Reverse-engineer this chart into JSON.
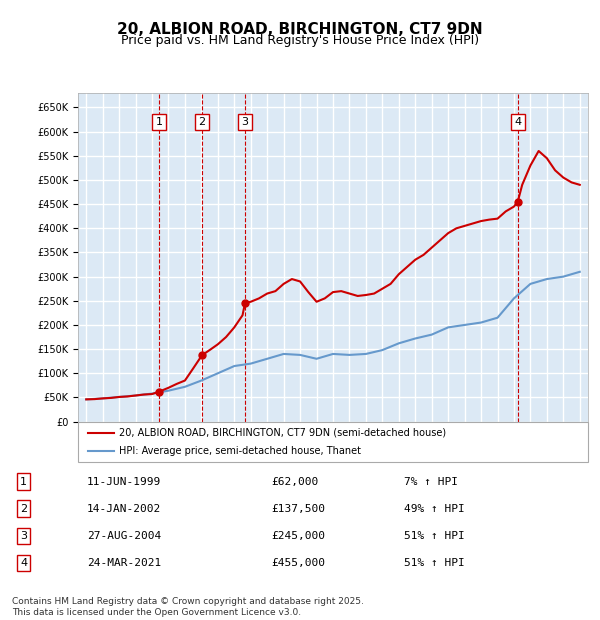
{
  "title": "20, ALBION ROAD, BIRCHINGTON, CT7 9DN",
  "subtitle": "Price paid vs. HM Land Registry's House Price Index (HPI)",
  "footer": "Contains HM Land Registry data © Crown copyright and database right 2025.\nThis data is licensed under the Open Government Licence v3.0.",
  "legend_label_red": "20, ALBION ROAD, BIRCHINGTON, CT7 9DN (semi-detached house)",
  "legend_label_blue": "HPI: Average price, semi-detached house, Thanet",
  "background_color": "#dce9f5",
  "plot_bg_color": "#dce9f5",
  "grid_color": "#ffffff",
  "red_color": "#cc0000",
  "blue_color": "#6699cc",
  "transactions": [
    {
      "label": "1",
      "date_num": 1999.44,
      "price": 62000,
      "x_label": "11-JUN-1999",
      "price_label": "£62,000",
      "pct": "7% ↑ HPI"
    },
    {
      "label": "2",
      "date_num": 2002.04,
      "price": 137500,
      "x_label": "14-JAN-2002",
      "price_label": "£137,500",
      "pct": "49% ↑ HPI"
    },
    {
      "label": "3",
      "date_num": 2004.65,
      "price": 245000,
      "x_label": "27-AUG-2004",
      "price_label": "£245,000",
      "pct": "51% ↑ HPI"
    },
    {
      "label": "4",
      "date_num": 2021.23,
      "price": 455000,
      "x_label": "24-MAR-2021",
      "price_label": "£455,000",
      "pct": "51% ↑ HPI"
    }
  ],
  "hpi_data": {
    "years": [
      1995,
      1996,
      1997,
      1998,
      1999,
      2000,
      2001,
      2002,
      2003,
      2004,
      2005,
      2006,
      2007,
      2008,
      2009,
      2010,
      2011,
      2012,
      2013,
      2014,
      2015,
      2016,
      2017,
      2018,
      2019,
      2020,
      2021,
      2022,
      2023,
      2024,
      2025
    ],
    "values": [
      46000,
      48000,
      51000,
      54000,
      58000,
      64000,
      72000,
      85000,
      100000,
      115000,
      120000,
      130000,
      140000,
      138000,
      130000,
      140000,
      138000,
      140000,
      148000,
      162000,
      172000,
      180000,
      195000,
      200000,
      205000,
      215000,
      255000,
      285000,
      295000,
      300000,
      310000
    ]
  },
  "price_data": {
    "x": [
      1995.0,
      1995.5,
      1996.0,
      1996.5,
      1997.0,
      1997.5,
      1998.0,
      1998.5,
      1999.0,
      1999.44,
      1999.5,
      2000.0,
      2000.5,
      2001.0,
      2001.5,
      2002.04,
      2002.5,
      2003.0,
      2003.5,
      2004.0,
      2004.5,
      2004.65,
      2005.0,
      2005.5,
      2006.0,
      2006.5,
      2007.0,
      2007.5,
      2008.0,
      2008.5,
      2009.0,
      2009.5,
      2010.0,
      2010.5,
      2011.0,
      2011.5,
      2012.0,
      2012.5,
      2013.0,
      2013.5,
      2014.0,
      2014.5,
      2015.0,
      2015.5,
      2016.0,
      2016.5,
      2017.0,
      2017.5,
      2018.0,
      2018.5,
      2019.0,
      2019.5,
      2020.0,
      2020.5,
      2021.0,
      2021.23,
      2021.5,
      2022.0,
      2022.5,
      2023.0,
      2023.5,
      2024.0,
      2024.5,
      2025.0
    ],
    "y": [
      46000,
      46500,
      48000,
      49000,
      51000,
      52000,
      54000,
      56000,
      57000,
      62000,
      63000,
      70000,
      78000,
      85000,
      110000,
      137500,
      148000,
      160000,
      175000,
      195000,
      220000,
      245000,
      248000,
      255000,
      265000,
      270000,
      285000,
      295000,
      290000,
      268000,
      248000,
      255000,
      268000,
      270000,
      265000,
      260000,
      262000,
      265000,
      275000,
      285000,
      305000,
      320000,
      335000,
      345000,
      360000,
      375000,
      390000,
      400000,
      405000,
      410000,
      415000,
      418000,
      420000,
      435000,
      445000,
      455000,
      490000,
      530000,
      560000,
      545000,
      520000,
      505000,
      495000,
      490000
    ]
  },
  "ylim": [
    0,
    680000
  ],
  "xlim": [
    1994.5,
    2025.5
  ],
  "yticks": [
    0,
    50000,
    100000,
    150000,
    200000,
    250000,
    300000,
    350000,
    400000,
    450000,
    500000,
    550000,
    600000,
    650000
  ],
  "xticks": [
    1995,
    1996,
    1997,
    1998,
    1999,
    2000,
    2001,
    2002,
    2003,
    2004,
    2005,
    2006,
    2007,
    2008,
    2009,
    2010,
    2011,
    2012,
    2013,
    2014,
    2015,
    2016,
    2017,
    2018,
    2019,
    2020,
    2021,
    2022,
    2023,
    2024,
    2025
  ]
}
